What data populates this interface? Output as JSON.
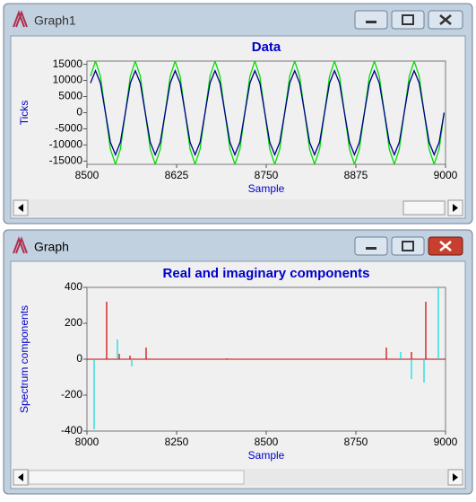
{
  "windows": [
    {
      "title": "Graph1"
    },
    {
      "title": "Graph"
    }
  ],
  "chart_data": [
    {
      "type": "line",
      "title": "Data",
      "x_label": "Sample",
      "y_label": "Ticks",
      "x": [
        8504.9,
        8511.9,
        8518.8,
        8525.8,
        8532.7,
        8539.7,
        8546.6,
        8553.6,
        8560.5,
        8567.4,
        8574.4,
        8581.3,
        8588.3,
        8595.2,
        8602.2,
        8609.1,
        8616.1,
        8623.0,
        8629.9,
        8636.9,
        8643.8,
        8650.8,
        8657.7,
        8664.7,
        8671.6,
        8678.6,
        8685.5,
        8692.4,
        8699.4,
        8706.3,
        8713.3,
        8720.2,
        8727.2,
        8734.1,
        8741.1,
        8748.0,
        8754.9,
        8761.9,
        8768.8,
        8775.8,
        8782.7,
        8789.7,
        8796.6,
        8803.6,
        8810.5,
        8817.4,
        8824.4,
        8831.3,
        8838.3,
        8845.2,
        8852.2,
        8859.1,
        8866.1,
        8873.0,
        8879.9,
        8886.9,
        8893.8,
        8900.8,
        8907.7,
        8914.7,
        8921.6,
        8928.6,
        8935.5,
        8942.4,
        8949.4,
        8956.3,
        8963.3,
        8970.2,
        8977.2,
        8984.1,
        8991.1,
        8998.0
      ],
      "series": [
        {
          "color": "#00dd00",
          "values": [
            11314,
            16000,
            11314,
            0,
            -11314,
            -16000,
            -11314,
            0,
            11314,
            16000,
            11314,
            0,
            -11314,
            -16000,
            -11314,
            0,
            11314,
            16000,
            11314,
            0,
            -11314,
            -16000,
            -11314,
            0,
            11314,
            16000,
            11314,
            0,
            -11314,
            -16000,
            -11314,
            0,
            11314,
            16000,
            11314,
            0,
            -11314,
            -16000,
            -11314,
            0,
            11314,
            16000,
            11314,
            0,
            -11314,
            -16000,
            -11314,
            0,
            11314,
            16000,
            11314,
            0,
            -11314,
            -16000,
            -11314,
            0,
            11314,
            16000,
            11314,
            0,
            -11314,
            -16000,
            -11314,
            0,
            11314,
            16000,
            11314,
            0,
            -11314,
            -16000,
            -11314,
            0
          ]
        },
        {
          "color": "#00008b",
          "values": [
            9192,
            13000,
            9192,
            0,
            -9192,
            -13000,
            -9192,
            0,
            9192,
            13000,
            9192,
            0,
            -9192,
            -13000,
            -9192,
            0,
            9192,
            13000,
            9192,
            0,
            -9192,
            -13000,
            -9192,
            0,
            9192,
            13000,
            9192,
            0,
            -9192,
            -13000,
            -9192,
            0,
            9192,
            13000,
            9192,
            0,
            -9192,
            -13000,
            -9192,
            0,
            9192,
            13000,
            9192,
            0,
            -9192,
            -13000,
            -9192,
            0,
            9192,
            13000,
            9192,
            0,
            -9192,
            -13000,
            -9192,
            0,
            9192,
            13000,
            9192,
            0,
            -9192,
            -13000,
            -9192,
            0,
            9192,
            13000,
            9192,
            0,
            -9192,
            -13000,
            -9192,
            0
          ]
        }
      ],
      "xlim": [
        8500,
        9000
      ],
      "xticks": [
        8500,
        8625,
        8750,
        8875,
        9000
      ],
      "ylim": [
        -16000,
        16000
      ],
      "yticks": [
        -15000,
        -10000,
        -5000,
        0,
        5000,
        10000,
        15000
      ]
    },
    {
      "type": "stem",
      "title": "Real and imaginary components",
      "x_label": "Sample",
      "y_label": "Spectrum components",
      "series": [
        {
          "color": "#cc0000",
          "x": [
            8055,
            8090,
            8120,
            8165,
            8390,
            8835,
            8905,
            8945
          ],
          "values": [
            320,
            30,
            20,
            65,
            5,
            65,
            40,
            320
          ]
        },
        {
          "color": "#00dddd",
          "x": [
            8020,
            8085,
            8125,
            8875,
            8905,
            8940,
            8980
          ],
          "values": [
            -390,
            110,
            -40,
            40,
            -110,
            -130,
            400
          ]
        }
      ],
      "xlim": [
        8000,
        9000
      ],
      "xticks": [
        8000,
        8250,
        8500,
        8750,
        9000
      ],
      "ylim": [
        -400,
        400
      ],
      "yticks": [
        -400,
        -200,
        0,
        200,
        400
      ]
    }
  ]
}
